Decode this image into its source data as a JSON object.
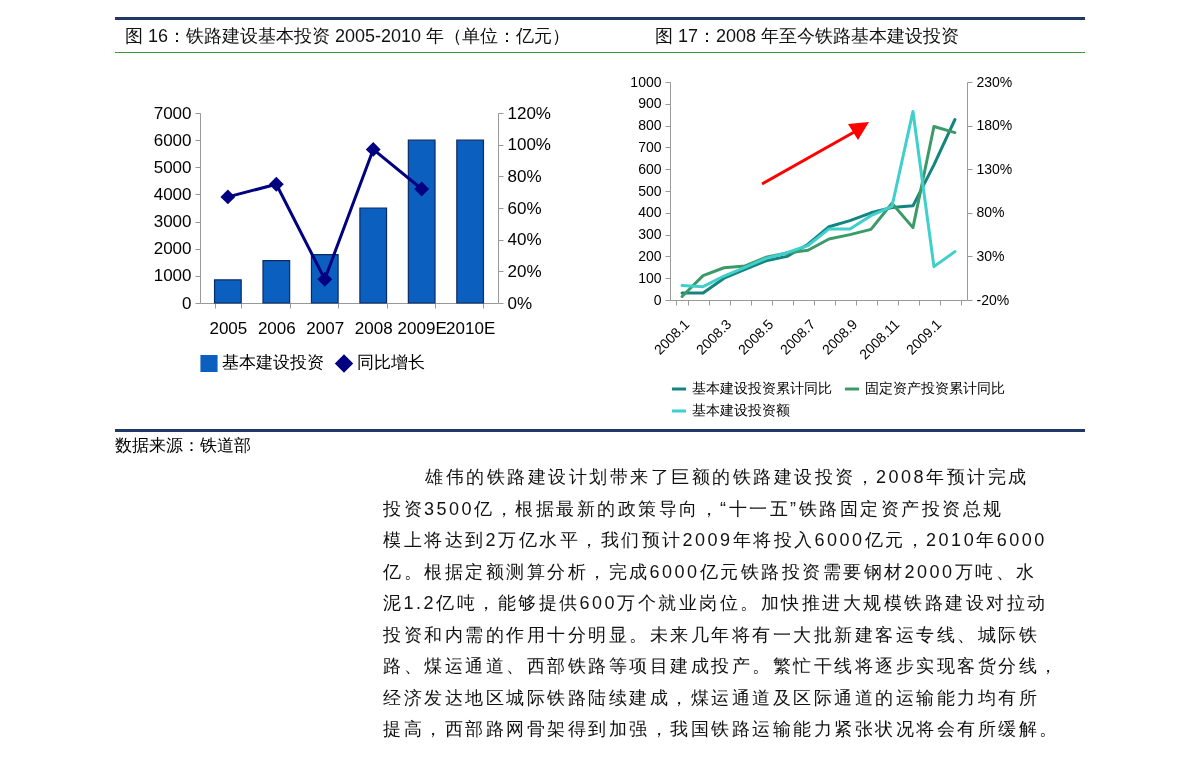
{
  "chart_data": [
    {
      "type": "bar",
      "title": "图 16：铁路建设基本投资 2005-2010 年（单位：亿元）",
      "categories": [
        "2005",
        "2006",
        "2007",
        "2008",
        "2009E",
        "2010E"
      ],
      "series": [
        {
          "name": "基本建设投资",
          "color": "#0b5fbf",
          "values": [
            850,
            1560,
            1780,
            3500,
            6000,
            6000
          ]
        },
        {
          "name": "同比增长",
          "type": "line",
          "axis": "y2",
          "color": "#000080",
          "values": [
            67,
            75,
            15,
            97,
            72,
            null
          ]
        }
      ],
      "ylim": [
        0,
        7000
      ],
      "yticks": [
        0,
        1000,
        2000,
        3000,
        4000,
        5000,
        6000,
        7000
      ],
      "y2lim": [
        0,
        120
      ],
      "y2ticks": [
        {
          "value": 0,
          "label": "0%"
        },
        {
          "value": 20,
          "label": "20%"
        },
        {
          "value": 40,
          "label": "40%"
        },
        {
          "value": 60,
          "label": "60%"
        },
        {
          "value": 80,
          "label": "80%"
        },
        {
          "value": 100,
          "label": "100%"
        },
        {
          "value": 120,
          "label": "120%"
        }
      ],
      "marker": "diamond",
      "legend": "bottom",
      "annotations": [
        "数据来源：铁道部"
      ]
    },
    {
      "type": "line",
      "title": "图 17：2008 年至今铁路基本建设投资",
      "categories": [
        "2008.1",
        null,
        "2008.3",
        null,
        "2008.5",
        null,
        "2008.7",
        null,
        "2008.9",
        null,
        "2008.11",
        null,
        "2009.1",
        null
      ],
      "series": [
        {
          "name": "基本建设投资累计同比",
          "color": "#13847f",
          "axis": "y2",
          "values": [
            -12,
            -12,
            5,
            15,
            25,
            30,
            44,
            64,
            71,
            80,
            86,
            88,
            135,
            187
          ]
        },
        {
          "name": "固定资产投资累计同比",
          "color": "#3c9a68",
          "axis": "y2",
          "values": [
            -16,
            8,
            17,
            19,
            29,
            34,
            37,
            50,
            55,
            61,
            91,
            63,
            179,
            172
          ]
        },
        {
          "name": "基本建设投资额",
          "color": "#3fcfcc",
          "values": [
            66,
            61,
            110,
            150,
            191,
            217,
            250,
            326,
            326,
            387,
            429,
            865,
            153,
            222
          ]
        }
      ],
      "ylim": [
        0,
        1000
      ],
      "yticks": [
        0,
        100,
        200,
        300,
        400,
        500,
        600,
        700,
        800,
        900,
        1000
      ],
      "y2lim": [
        -20,
        230
      ],
      "y2ticks": [
        {
          "value": -20,
          "label": "-20%"
        },
        {
          "value": 30,
          "label": "30%"
        },
        {
          "value": 80,
          "label": "80%"
        },
        {
          "value": 130,
          "label": "130%"
        },
        {
          "value": 180,
          "label": "180%"
        },
        {
          "value": 230,
          "label": "230%"
        }
      ],
      "legend": "bottom"
    },
    {
      "type": "other",
      "annotations": [
        "雄伟的铁路建设计划带来了巨额的铁路建设投资，2008年预计完成",
        "投资3500亿，根据最新的政策导向，“十一五”铁路固定资产投资总规",
        "模上将达到2万亿水平，我们预计2009年将投入6000亿元，2010年6000",
        "亿。根据定额测算分析，完成6000亿元铁路投资需要钢材2000万吨、水",
        "泥1.2亿吨，能够提供600万个就业岗位。加快推进大规模铁路建设对拉动",
        "投资和内需的作用十分明显。未来几年将有一大批新建客运专线、城际铁",
        "路、煤运通道、西部铁路等项目建成投产。繁忙干线将逐步实现客货分线，",
        "经济发达地区城际铁路陆续建成，煤运通道及区际通道的运输能力均有所",
        "提高，西部路网骨架得到加强，我国铁路运输能力紧张状况将会有所缓解。"
      ]
    }
  ]
}
